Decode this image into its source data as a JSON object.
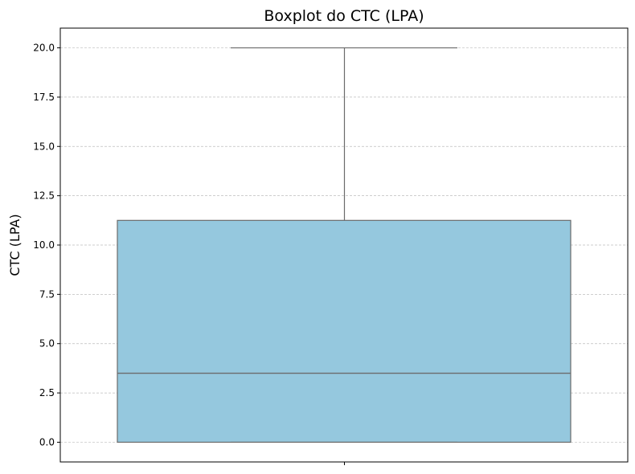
{
  "chart_data": {
    "type": "box",
    "title": "Boxplot do CTC (LPA)",
    "xlabel": "",
    "ylabel": "CTC (LPA)",
    "ylim": [
      -1.0,
      21.0
    ],
    "yticks": [
      "0.0",
      "2.5",
      "5.0",
      "7.5",
      "10.0",
      "12.5",
      "15.0",
      "17.5",
      "20.0"
    ],
    "grid": true,
    "box": {
      "whisker_low": 0.0,
      "q1": 0.0,
      "median": 3.5,
      "q3": 11.25,
      "whisker_high": 20.0
    },
    "colors": {
      "box_fill": "#95c8de",
      "box_edge": "#6b6b6b",
      "grid": "#bdbdbd"
    }
  }
}
